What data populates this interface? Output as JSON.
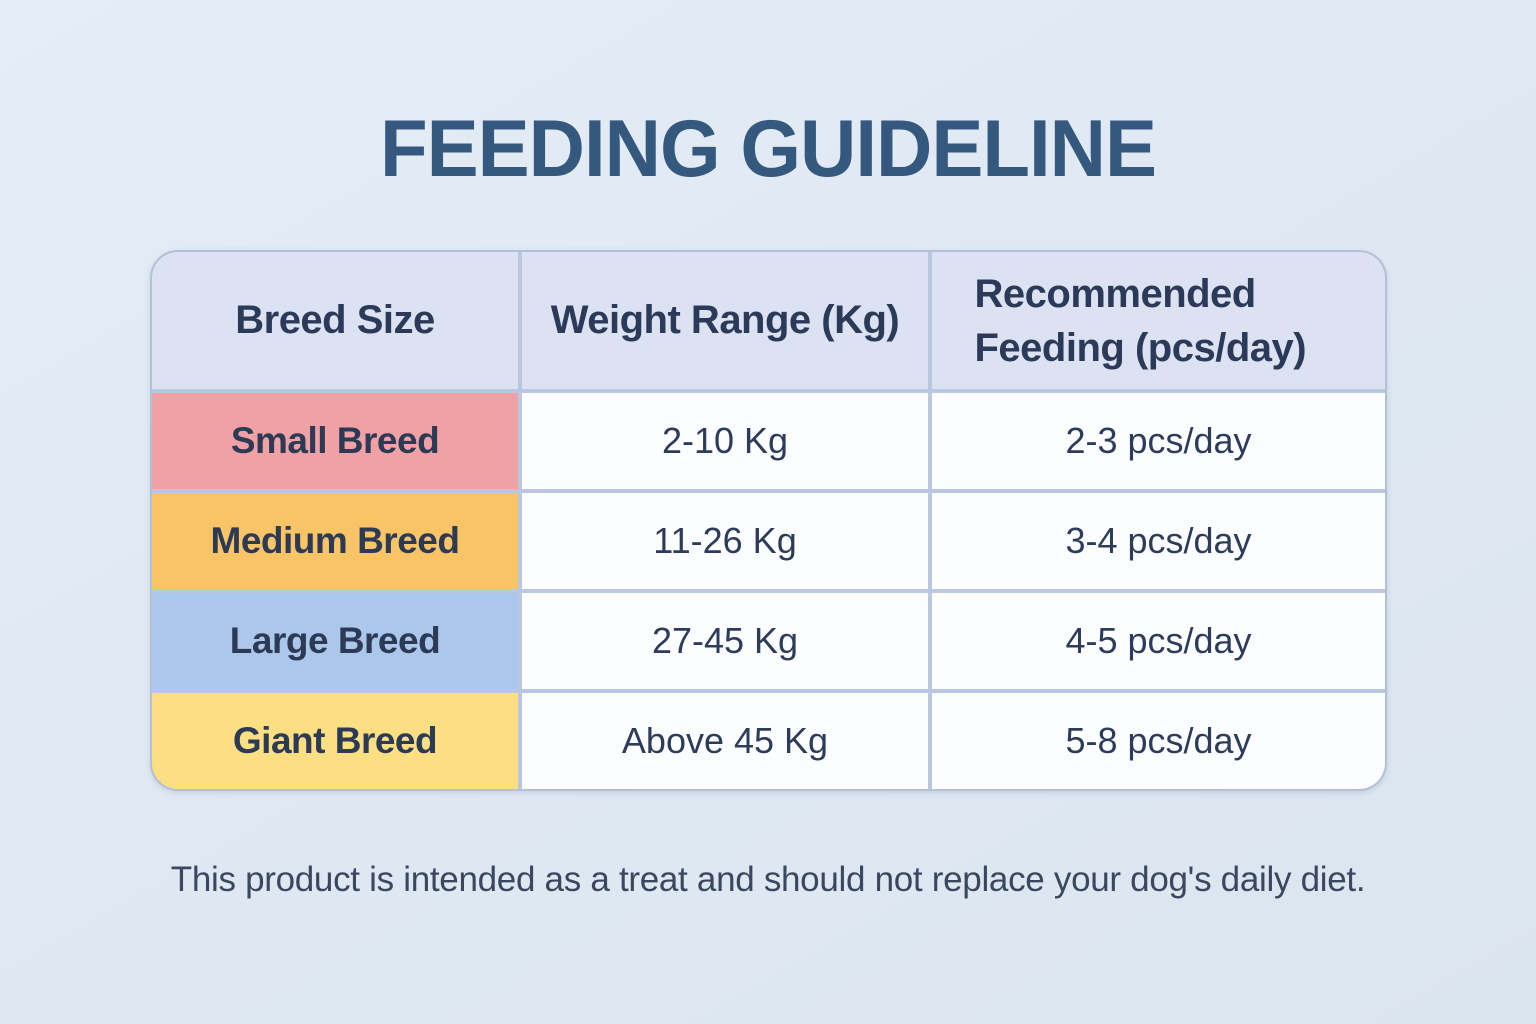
{
  "title": "FEEDING GUIDELINE",
  "disclaimer": "This product is intended as a treat and should not replace your dog's daily diet.",
  "table": {
    "headers": [
      "Breed Size",
      "Weight Range (Kg)",
      "Recommended Feeding (pcs/day)"
    ],
    "rows": [
      {
        "breed": "Small Breed",
        "weight": "2-10 Kg",
        "feeding": "2-3 pcs/day",
        "row_color": "#f0a1a6"
      },
      {
        "breed": "Medium Breed",
        "weight": "11-26 Kg",
        "feeding": "3-4 pcs/day",
        "row_color": "#f8c466"
      },
      {
        "breed": "Large Breed",
        "weight": "27-45 Kg",
        "feeding": "4-5 pcs/day",
        "row_color": "#abc7eb"
      },
      {
        "breed": "Giant Breed",
        "weight": "Above 45 Kg",
        "feeding": "5-8 pcs/day",
        "row_color": "#fbdf82"
      }
    ]
  },
  "colors": {
    "page_background": "#e0e9f3",
    "title_text": "#35587f",
    "header_cell_background": "#dce2f1",
    "body_text": "#2d3b5a",
    "grid_line": "#b9c8e0",
    "value_cell_background": "#fcfdff",
    "small_breed_row": "#f0a1a6",
    "medium_breed_row": "#f8c466",
    "large_breed_row": "#abc7eb",
    "giant_breed_row": "#fbdf82"
  }
}
